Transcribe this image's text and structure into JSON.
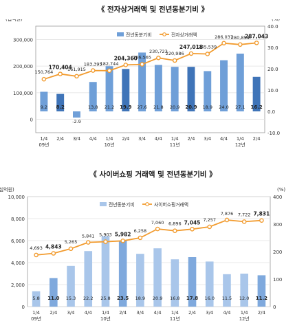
{
  "chart_data": [
    {
      "type": "bar",
      "title": "《 전자상거래액 및 전년동분기비 》",
      "left_unit": "(십억원)",
      "right_unit": "(%)",
      "categories": [
        "1/4\n09년",
        "2/4",
        "3/4",
        "4/4",
        "1/4\n10년",
        "2/4",
        "3/4",
        "4/4",
        "1/4\n11년",
        "2/4",
        "3/4",
        "4/4",
        "1/4\n12년",
        "2/4"
      ],
      "left_ticks": [
        "0",
        "100,000",
        "200,000",
        "300,000"
      ],
      "right_ticks": [
        "-10.0",
        "0.0",
        "10.0",
        "20.0",
        "30.0",
        "40.0"
      ],
      "ylim_left": [
        -50000,
        350000
      ],
      "ylim_right": [
        -10,
        40
      ],
      "series": [
        {
          "name": "전년동분기비",
          "axis": "right",
          "kind": "bar",
          "values": [
            9.2,
            8.2,
            -2.9,
            13.8,
            21.2,
            19.9,
            27.6,
            21.8,
            20.9,
            20.9,
            18.9,
            24.0,
            27.1,
            16.2
          ],
          "labels": [
            "9.2",
            "8.2",
            "-2.9",
            "13.8",
            "21.2",
            "19.9",
            "27.6",
            "21.8",
            "20.9",
            "20.9",
            "18.9",
            "24.0",
            "27.1",
            "16.2"
          ],
          "bold_indices": [
            1,
            5,
            9,
            13
          ]
        },
        {
          "name": "전자상거래액",
          "axis": "left",
          "kind": "line",
          "values": [
            150764,
            170404,
            161915,
            183395,
            182744,
            204360,
            206565,
            230723,
            220986,
            247018,
            245539,
            286037,
            280854,
            287043
          ],
          "labels": [
            "150,764",
            "170,404",
            "161,915",
            "183,395",
            "182,744",
            "204,360",
            "206,565",
            "230,723",
            "220,986",
            "247,018",
            "245,539",
            "286,037",
            "280,854",
            "287,043"
          ],
          "bold_indices": [
            1,
            5,
            9,
            13
          ]
        }
      ],
      "colors": {
        "bar": "#6f9fd8",
        "bar_dark": "#3f74b8",
        "line": "#f29b2e",
        "marker": "#f29b2e"
      }
    },
    {
      "type": "bar",
      "title": "《 사이버쇼핑 거래액 및 전년동분기비 》",
      "left_unit": "(십억원)",
      "right_unit": "(%)",
      "categories": [
        "1/4\n09년",
        "2/4",
        "3/4",
        "4/4",
        "1/4\n10년",
        "2/4",
        "3/4",
        "4/4",
        "1/4\n11년",
        "2/4",
        "3/4",
        "4/4",
        "1/4\n12년",
        "2/4"
      ],
      "left_ticks": [
        "0",
        "2,000",
        "4,000",
        "6,000",
        "8,000",
        "10,000"
      ],
      "right_ticks": [
        "0",
        "100",
        "200",
        "300",
        "400"
      ],
      "ylim_left": [
        0,
        10000
      ],
      "ylim_right": [
        0,
        400
      ],
      "series": [
        {
          "name": "전년동분기비",
          "axis": "left",
          "kind": "bar",
          "values": [
            1400,
            2600,
            3700,
            5050,
            6400,
            6000,
            4800,
            5300,
            4300,
            4500,
            4100,
            2950,
            3000,
            2850
          ],
          "labels": [
            "5.8",
            "11.0",
            "15.3",
            "22.2",
            "25.8",
            "23.5",
            "18.9",
            "20.9",
            "16.8",
            "17.8",
            "16.0",
            "11.5",
            "12.0",
            "11.2"
          ],
          "bold_indices": [
            1,
            5,
            9,
            13
          ]
        },
        {
          "name": "사이버쇼핑거래액",
          "axis": "left",
          "kind": "line",
          "values": [
            4693,
            4843,
            5265,
            5841,
            5903,
            5982,
            6258,
            7060,
            6896,
            7045,
            7257,
            7876,
            7722,
            7831
          ],
          "labels": [
            "4,693",
            "4,843",
            "5,265",
            "5,841",
            "5,903",
            "5,982",
            "6,258",
            "7,060",
            "6,896",
            "7,045",
            "7,257",
            "7,876",
            "7,722",
            "7,831"
          ],
          "bold_indices": [
            1,
            5,
            9,
            13
          ]
        }
      ],
      "colors": {
        "bar": "#a9c6ea",
        "bar_dark": "#7fa9dd",
        "line": "#f29b2e",
        "marker": "#f29b2e"
      }
    }
  ]
}
